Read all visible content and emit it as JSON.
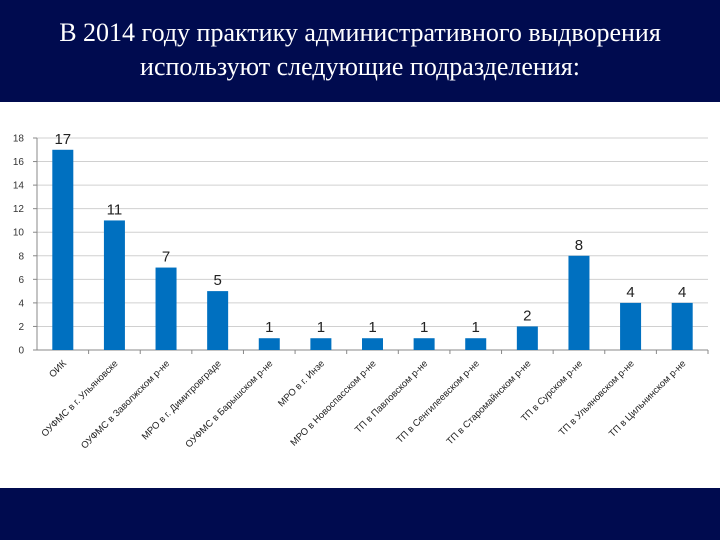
{
  "slide": {
    "title": "В 2014 году практику административного выдворения используют следующие подразделения:",
    "background_color": "#000b4f",
    "panel_color": "#ffffff"
  },
  "chart_data": {
    "type": "bar",
    "title": "",
    "xlabel": "",
    "ylabel": "",
    "ylim": [
      0,
      18
    ],
    "yticks": [
      0,
      2,
      4,
      6,
      8,
      10,
      12,
      14,
      16,
      18
    ],
    "grid": true,
    "legend": "none",
    "bar_color": "#0070c0",
    "categories": [
      "ОИК",
      "ОУФМС в г. Ульяновске",
      "ОУФМС в Заволжском р-не",
      "МРО в г. Димитровграде",
      "ОУФМС в Барышском р-не",
      "МРО в г. Инзе",
      "МРО в Новоспасском р-не",
      "ТП в Павловском р-не",
      "ТП в Сенгилеевском р-не",
      "ТП в Старомайнском р-не",
      "ТП в Сурском р-не",
      "ТП в Ульяновском р-не",
      "ТП в Цильнинском р-не"
    ],
    "values": [
      17,
      11,
      7,
      5,
      1,
      1,
      1,
      1,
      1,
      2,
      8,
      4,
      4
    ]
  }
}
